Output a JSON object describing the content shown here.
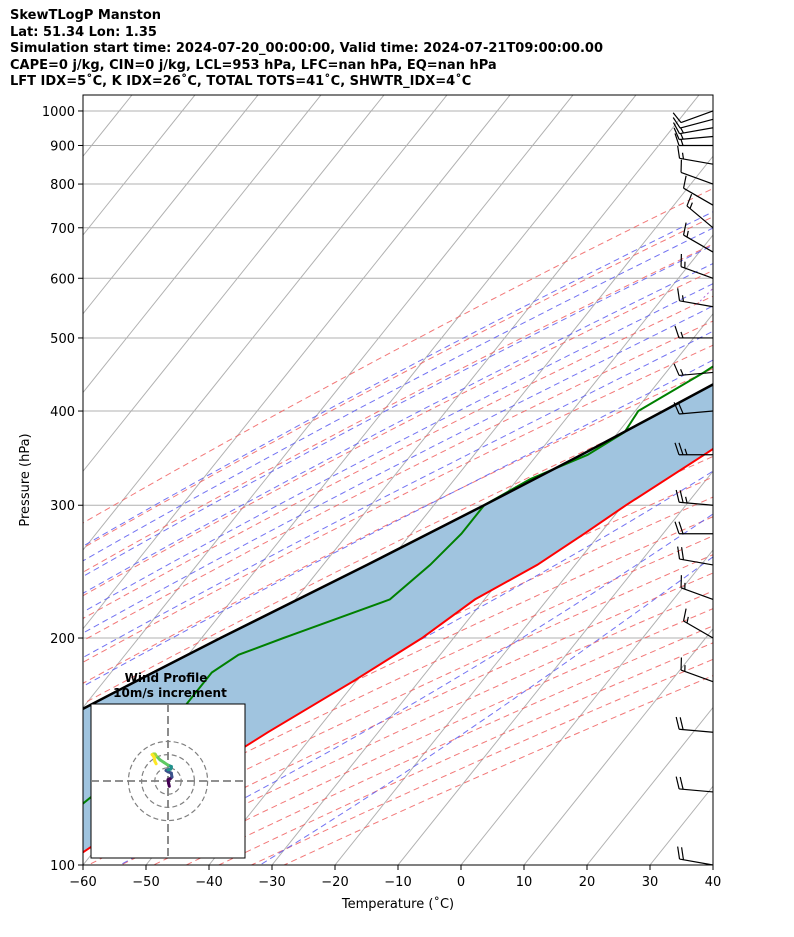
{
  "header": {
    "line1": "SkewTLogP Manston",
    "line2": "Lat: 51.34   Lon: 1.35",
    "line3": "Simulation start time: 2024-07-20_00:00:00, Valid time: 2024-07-21T09:00:00.00",
    "line4": "CAPE=0 j/kg, CIN=0 j/kg, LCL=953 hPa, LFC=nan hPa, EQ=nan hPa",
    "line5": "LFT IDX=5˚C, K IDX=26˚C, TOTAL TOTS=41˚C, SHWTR_IDX=4˚C"
  },
  "chart_data": {
    "type": "line",
    "xlabel": "Temperature (˚C)",
    "ylabel": "Pressure (hPa)",
    "xlim": [
      -60,
      40
    ],
    "ylim": [
      1050,
      100
    ],
    "yscale": "log",
    "grid": true,
    "x_ticks": [
      "−60",
      "−50",
      "−40",
      "−30",
      "−20",
      "−10",
      "0",
      "10",
      "20",
      "30",
      "40"
    ],
    "y_ticks": [
      "100",
      "200",
      "300",
      "400",
      "500",
      "600",
      "700",
      "800",
      "900",
      "1000"
    ],
    "series": [
      {
        "color": "#ff0000",
        "pressure": [
          1000,
          975,
          950,
          925,
          900,
          850,
          800,
          750,
          700,
          650,
          600,
          550,
          500,
          450,
          400,
          350,
          300,
          275,
          250,
          225,
          200,
          175,
          150,
          125,
          100
        ],
        "temperature": [
          19,
          17.5,
          19.5,
          19,
          17.5,
          15.5,
          13,
          11.3,
          10,
          8,
          5.5,
          3.5,
          1.5,
          -3.5,
          -8.5,
          -13.5,
          -19.5,
          -22.5,
          -26,
          -31.5,
          -35,
          -40.5,
          -47.5,
          -55,
          -63
        ]
      },
      {
        "color": "#008000",
        "pressure": [
          1000,
          975,
          950,
          925,
          900,
          850,
          800,
          750,
          700,
          650,
          600,
          550,
          500,
          475,
          450,
          400,
          375,
          350,
          325,
          300,
          275,
          250,
          225,
          200,
          190,
          180,
          170,
          160,
          150,
          140,
          125,
          100
        ],
        "dewpoint": [
          17,
          16.5,
          15,
          14,
          12.5,
          10,
          7.5,
          5.5,
          2,
          -2.5,
          -7,
          -13.5,
          -21,
          -22,
          -24,
          -29.5,
          -29,
          -32,
          -38,
          -42,
          -42,
          -43,
          -45,
          -57,
          -62,
          -64,
          -64,
          -64,
          -64.5,
          -65,
          -67,
          -72
        ]
      },
      {
        "color": "#000000",
        "pressure": [
          1000,
          975,
          953,
          900,
          850,
          800,
          750,
          700,
          650,
          600,
          550,
          500,
          450,
          400,
          350,
          300,
          250,
          200,
          175,
          150,
          125,
          100
        ],
        "temperature": [
          19,
          17.5,
          16.3,
          13.5,
          11,
          8.4,
          5.6,
          2.5,
          -0.8,
          -4.5,
          -8.7,
          -13.5,
          -19,
          -25.5,
          -33,
          -42,
          -53,
          -67,
          -75,
          -84,
          -93,
          -103
        ]
      }
    ],
    "wind_barbs": {
      "pressure": [
        1000,
        975,
        950,
        925,
        900,
        850,
        800,
        750,
        700,
        650,
        600,
        550,
        500,
        450,
        400,
        350,
        300,
        275,
        250,
        225,
        200,
        175,
        150,
        125,
        100
      ],
      "speed_kt": [
        10,
        10,
        15,
        15,
        15,
        15,
        10,
        10,
        15,
        15,
        15,
        15,
        15,
        15,
        20,
        25,
        25,
        20,
        20,
        15,
        15,
        15,
        20,
        20,
        20
      ],
      "direction_deg": [
        250,
        255,
        260,
        265,
        270,
        280,
        290,
        300,
        310,
        300,
        290,
        280,
        270,
        265,
        265,
        270,
        275,
        270,
        280,
        290,
        300,
        290,
        275,
        275,
        280
      ]
    },
    "inset": {
      "title_line1": "Wind Profile",
      "title_line2": "10m/s increment",
      "hodograph_u": [
        1,
        0.5,
        0,
        2,
        3,
        2.5,
        0,
        -1.5,
        0,
        2,
        2.5,
        2.5,
        0,
        -3,
        -6,
        -8,
        -9,
        -9.5,
        -10,
        -11,
        -12,
        -11.5,
        -10.5,
        -10,
        -9
      ],
      "hodograph_v": [
        -4,
        -2,
        1,
        2,
        3,
        6,
        7,
        8,
        8.5,
        9,
        10,
        11,
        12,
        14,
        16,
        18,
        19,
        20,
        20.5,
        20.5,
        20,
        19.5,
        18,
        15,
        13
      ],
      "rings": [
        10,
        20,
        30
      ]
    }
  }
}
